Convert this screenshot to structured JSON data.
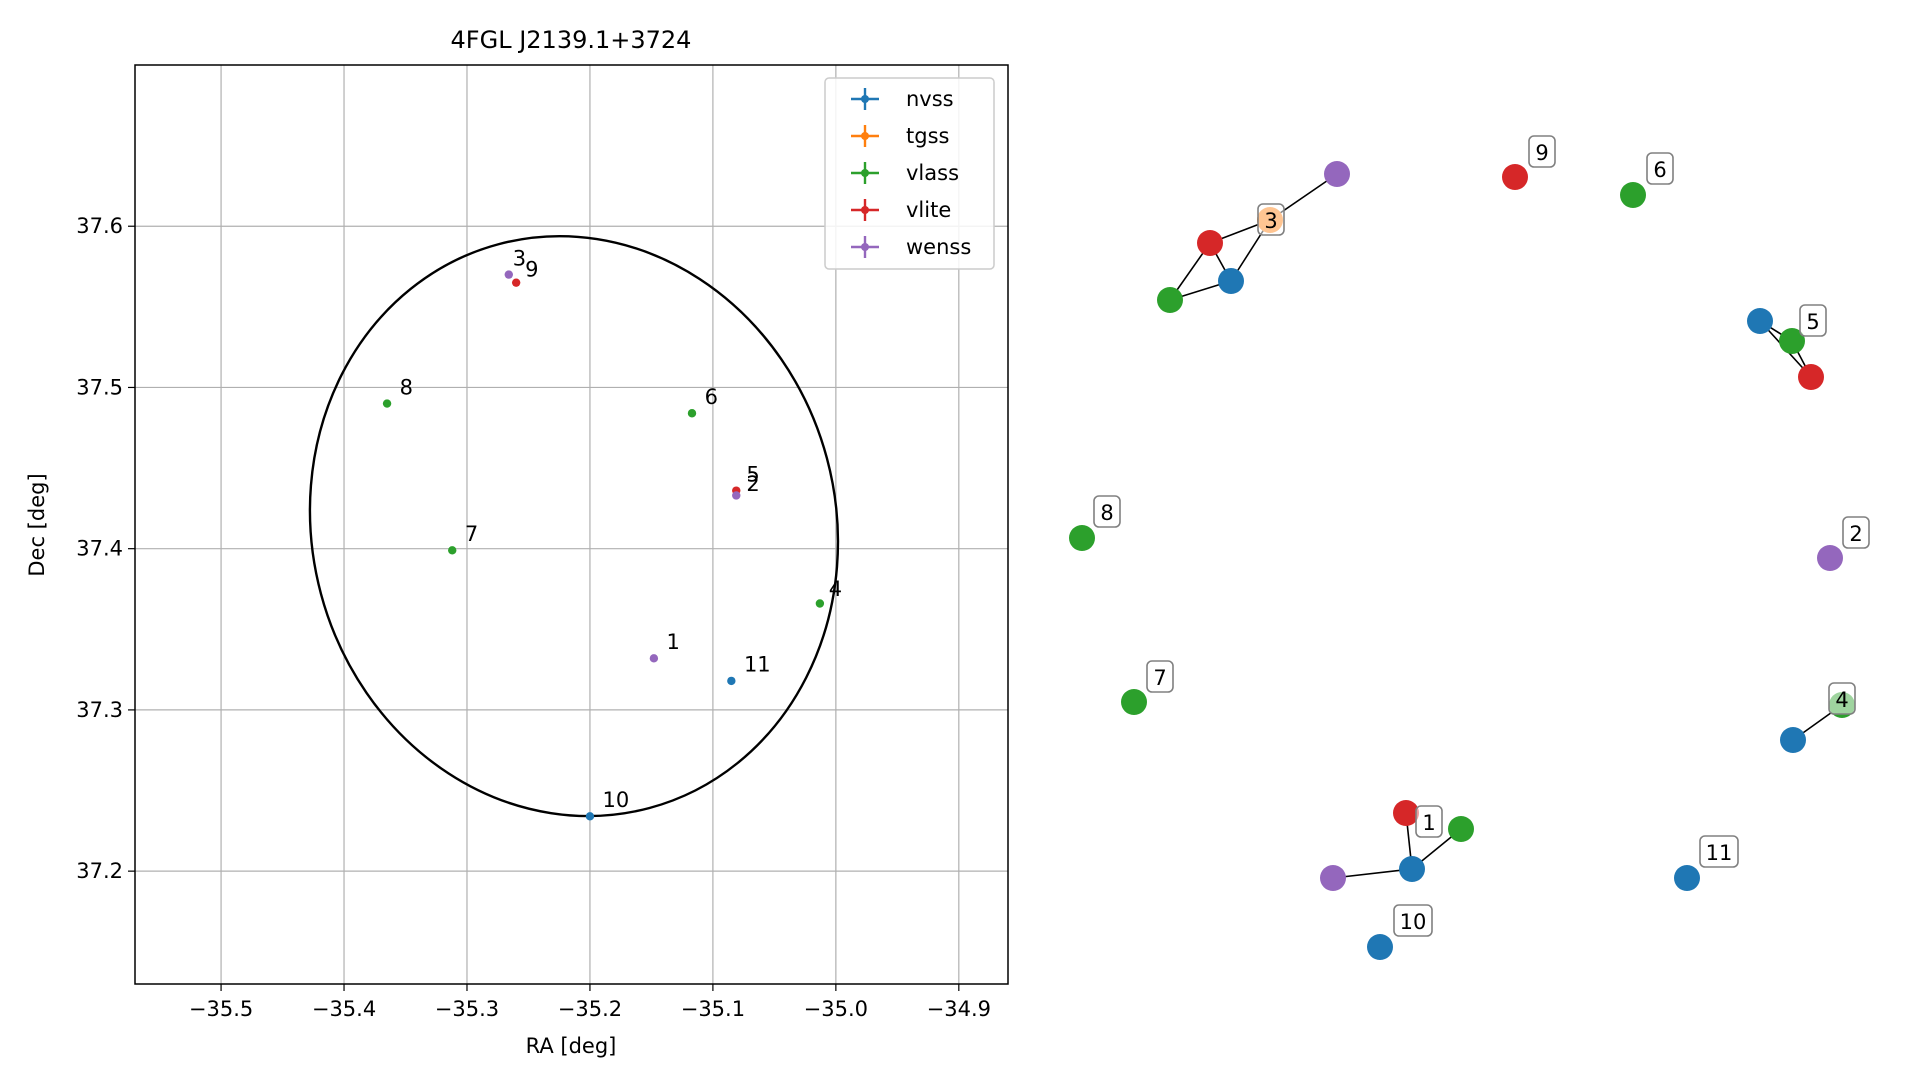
{
  "chart_data": [
    {
      "type": "scatter",
      "title": "4FGL J2139.1+3724",
      "xlabel": "RA [deg]",
      "ylabel": "Dec [deg]",
      "xlim": [
        -35.57,
        -34.86
      ],
      "ylim": [
        37.13,
        37.7
      ],
      "xticks": [
        -35.5,
        -35.4,
        -35.3,
        -35.2,
        -35.1,
        -35.0,
        -34.9
      ],
      "xtick_labels": [
        "−35.5",
        "−35.4",
        "−35.3",
        "−35.2",
        "−35.1",
        "−35.0",
        "−34.9"
      ],
      "yticks": [
        37.2,
        37.3,
        37.4,
        37.5,
        37.6
      ],
      "ytick_labels": [
        "37.2",
        "37.3",
        "37.4",
        "37.5",
        "37.6"
      ],
      "grid": true,
      "legend_position": "top-right",
      "ellipse": {
        "center": [
          -35.213,
          37.414
        ],
        "ra_semi": 0.213,
        "dec_semi": 0.181,
        "rotation_deg": 15,
        "color": "#000000"
      },
      "series": [
        {
          "name": "nvss",
          "color": "#1f77b4",
          "points": [
            {
              "x": -35.2,
              "y": 37.234
            },
            {
              "x": -35.085,
              "y": 37.318
            }
          ]
        },
        {
          "name": "tgss",
          "color": "#ff7f0e",
          "points": []
        },
        {
          "name": "vlass",
          "color": "#2ca02c",
          "points": [
            {
              "x": -35.365,
              "y": 37.49
            },
            {
              "x": -35.117,
              "y": 37.484
            },
            {
              "x": -35.312,
              "y": 37.399
            },
            {
              "x": -35.013,
              "y": 37.366
            }
          ]
        },
        {
          "name": "vlite",
          "color": "#d62728",
          "points": [
            {
              "x": -35.26,
              "y": 37.565
            },
            {
              "x": -35.081,
              "y": 37.436
            }
          ]
        },
        {
          "name": "wenss",
          "color": "#9467bd",
          "points": [
            {
              "x": -35.266,
              "y": 37.57
            },
            {
              "x": -35.148,
              "y": 37.332
            },
            {
              "x": -35.081,
              "y": 37.433
            }
          ]
        }
      ],
      "annotations": [
        {
          "text": "3",
          "x": -35.266,
          "y": 37.572
        },
        {
          "text": "9",
          "x": -35.256,
          "y": 37.565
        },
        {
          "text": "8",
          "x": -35.358,
          "y": 37.492
        },
        {
          "text": "6",
          "x": -35.11,
          "y": 37.486
        },
        {
          "text": "5",
          "x": -35.076,
          "y": 37.438
        },
        {
          "text": "2",
          "x": -35.076,
          "y": 37.432
        },
        {
          "text": "7",
          "x": -35.305,
          "y": 37.401
        },
        {
          "text": "4",
          "x": -35.009,
          "y": 37.367
        },
        {
          "text": "1",
          "x": -35.141,
          "y": 37.334
        },
        {
          "text": "11",
          "x": -35.078,
          "y": 37.32
        },
        {
          "text": "10",
          "x": -35.193,
          "y": 37.236
        }
      ]
    },
    {
      "type": "network",
      "nodes": [
        {
          "id": "n3p",
          "cat": "wenss"
        },
        {
          "id": "n3t",
          "cat": "tgss"
        },
        {
          "id": "n3r",
          "cat": "vlite"
        },
        {
          "id": "n3b",
          "cat": "nvss"
        },
        {
          "id": "n3g",
          "cat": "vlass"
        },
        {
          "id": "n9",
          "cat": "vlite"
        },
        {
          "id": "n6",
          "cat": "vlass"
        },
        {
          "id": "n5b",
          "cat": "nvss"
        },
        {
          "id": "n5g",
          "cat": "vlass"
        },
        {
          "id": "n5r",
          "cat": "vlite"
        },
        {
          "id": "n8",
          "cat": "vlass"
        },
        {
          "id": "n2",
          "cat": "wenss"
        },
        {
          "id": "n7",
          "cat": "vlass"
        },
        {
          "id": "n4b",
          "cat": "nvss"
        },
        {
          "id": "n4g",
          "cat": "vlass"
        },
        {
          "id": "n1r",
          "cat": "vlite"
        },
        {
          "id": "n1g",
          "cat": "vlass"
        },
        {
          "id": "n1b",
          "cat": "nvss"
        },
        {
          "id": "n1p",
          "cat": "wenss"
        },
        {
          "id": "n11",
          "cat": "nvss"
        },
        {
          "id": "n10",
          "cat": "nvss"
        }
      ],
      "edges": [
        [
          "n3p",
          "n3t"
        ],
        [
          "n3t",
          "n3r"
        ],
        [
          "n3t",
          "n3b"
        ],
        [
          "n3r",
          "n3g"
        ],
        [
          "n3g",
          "n3b"
        ],
        [
          "n3r",
          "n3b"
        ],
        [
          "n5b",
          "n5g"
        ],
        [
          "n5g",
          "n5r"
        ],
        [
          "n5b",
          "n5r"
        ],
        [
          "n4b",
          "n4g"
        ],
        [
          "n1r",
          "n1b"
        ],
        [
          "n1g",
          "n1b"
        ],
        [
          "n1p",
          "n1b"
        ]
      ],
      "labels": [
        "3",
        "9",
        "6",
        "5",
        "8",
        "2",
        "7",
        "4",
        "1",
        "11",
        "10"
      ]
    }
  ]
}
